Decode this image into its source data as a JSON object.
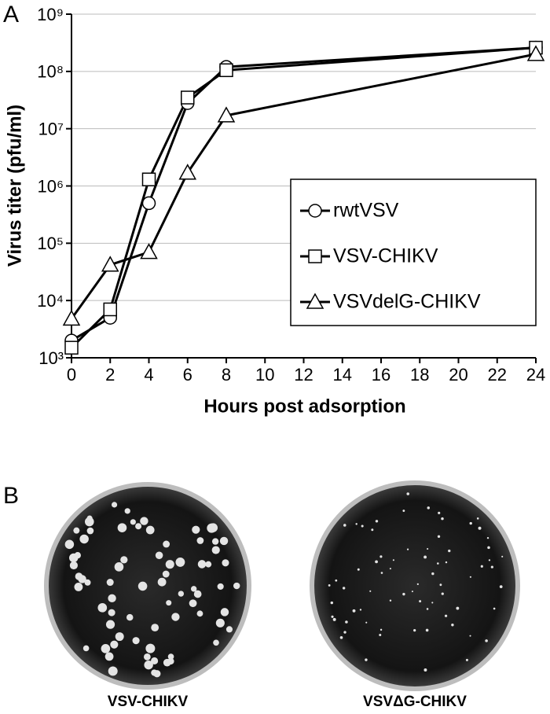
{
  "panel_labels": [
    "A",
    "B"
  ],
  "chart_data": {
    "type": "line",
    "y_label": "Virus titer (pfu/ml)",
    "x_label": "Hours post adsorption",
    "log_y": true,
    "grid": true,
    "legend": "right",
    "xlim": [
      0,
      24
    ],
    "xticks": [
      0,
      2,
      4,
      6,
      8,
      10,
      12,
      14,
      16,
      18,
      20,
      22,
      24
    ],
    "ylim": [
      1000,
      1000000000
    ],
    "yticks": [
      {
        "value": 1000,
        "label": "10³"
      },
      {
        "value": 10000,
        "label": "10⁴"
      },
      {
        "value": 100000,
        "label": "10⁵"
      },
      {
        "value": 1000000,
        "label": "10⁶"
      },
      {
        "value": 10000000,
        "label": "10⁷"
      },
      {
        "value": 100000000,
        "label": "10⁸"
      },
      {
        "value": 1000000000,
        "label": "10⁹"
      }
    ],
    "series": [
      {
        "name": "rwtVSV",
        "color": "#000000",
        "marker": "circle",
        "x": [
          0,
          2,
          4,
          6,
          8,
          24
        ],
        "values": [
          2000,
          5000,
          500000,
          28000000,
          120000000,
          260000000
        ]
      },
      {
        "name": "VSV-CHIKV",
        "color": "#000000",
        "marker": "square",
        "x": [
          0,
          2,
          4,
          6,
          8,
          24
        ],
        "values": [
          1500,
          7000,
          1300000,
          35000000,
          105000000,
          260000000
        ]
      },
      {
        "name": "VSVdelG-CHIKV",
        "color": "#000000",
        "marker": "triangle",
        "x": [
          0,
          2,
          4,
          6,
          8,
          24
        ],
        "values": [
          4800,
          42000,
          70000,
          1700000,
          17000000,
          200000000
        ]
      }
    ]
  },
  "plates": [
    {
      "label": "VSV-CHIKV"
    },
    {
      "label": "VSVΔG-CHIKV"
    }
  ]
}
